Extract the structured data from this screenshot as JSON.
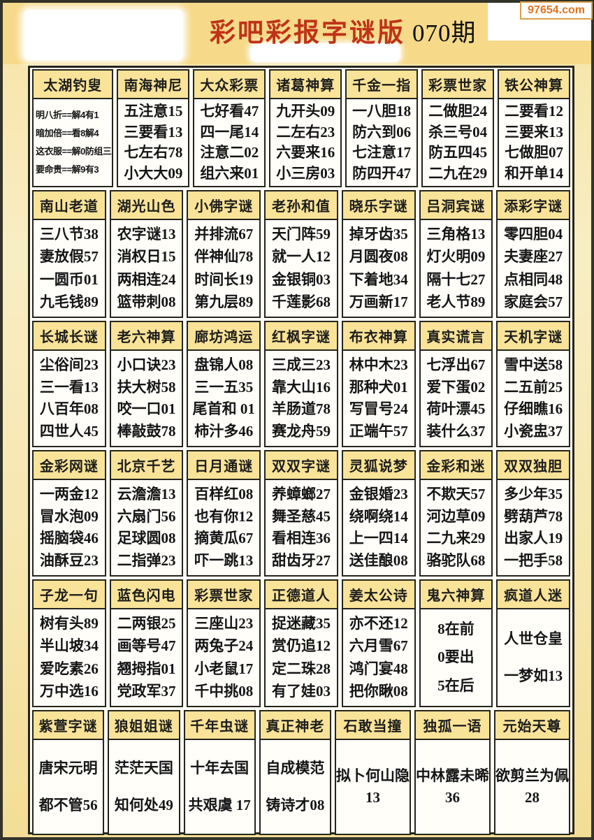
{
  "page": {
    "title_red": "彩吧彩报字谜版",
    "title_issue": "070期",
    "watermark": "97654.com"
  },
  "colors": {
    "title_red": "#bf3318",
    "header_yellow": "#f9e398",
    "band_yellow": "#f6da8a",
    "border_dark": "#25251d",
    "watermark_orange": "#e2731d"
  },
  "table": {
    "rows": [
      {
        "headers": [
          "太湖钓叟",
          "南海神尼",
          "大众彩票",
          "诸葛神算",
          "千金一指",
          "彩票世家",
          "铁公神算"
        ],
        "cells": [
          {
            "style": "left",
            "lines": [
              "明八折==解4有1",
              "暗加倍==看8解4",
              "这衣服==解0防组三",
              "要命贵==解9有3"
            ]
          },
          {
            "lines": [
              "五注意15",
              "三要看13",
              "七左右78",
              "小大大09"
            ]
          },
          {
            "lines": [
              "七好看47",
              "四一尾14",
              "注意二02",
              "组六来01"
            ]
          },
          {
            "lines": [
              "九开头09",
              "二左右23",
              "六要来16",
              "小三房03"
            ]
          },
          {
            "lines": [
              "一八胆18",
              "防六到06",
              "七注意17",
              "防四开47"
            ]
          },
          {
            "lines": [
              "二做胆24",
              "杀三号04",
              "防五四45",
              "二九在29"
            ]
          },
          {
            "lines": [
              "二要看12",
              "三要来13",
              "七做胆07",
              "和开单14"
            ]
          }
        ]
      },
      {
        "headers": [
          "南山老道",
          "湖光山色",
          "小佛字谜",
          "老孙和值",
          "晓乐字谜",
          "吕洞宾谜",
          "添彩字谜"
        ],
        "cells": [
          {
            "lines": [
              "三八节38",
              "妻放假57",
              "一圆币01",
              "九毛钱89"
            ]
          },
          {
            "lines": [
              "农字谜13",
              "消权日15",
              "两相连24",
              "篮带刺08"
            ]
          },
          {
            "lines": [
              "并排流67",
              "伴神仙78",
              "时间长19",
              "第九层89"
            ]
          },
          {
            "lines": [
              "天门阵59",
              "就一人12",
              "金银铜03",
              "千莲影68"
            ]
          },
          {
            "lines": [
              "掉牙齿35",
              "月圆夜08",
              "下着地34",
              "万画新17"
            ]
          },
          {
            "lines": [
              "三角格13",
              "灯火明09",
              "隔十七27",
              "老人节89"
            ]
          },
          {
            "lines": [
              "零四胆04",
              "夫妻座27",
              "点相同48",
              "家庭会57"
            ]
          }
        ]
      },
      {
        "headers": [
          "长城长谜",
          "老六神算",
          "廊坊鸿运",
          "红枫字谜",
          "布衣神算",
          "真实谎言",
          "天机字谜"
        ],
        "cells": [
          {
            "lines": [
              "尘俗间23",
              "三一看13",
              "八百年08",
              "四世人45"
            ]
          },
          {
            "lines": [
              "小口诀23",
              "扶大树58",
              "咬一口01",
              "棒敲鼓78"
            ]
          },
          {
            "lines": [
              "盘锦人08",
              "三一五35",
              "尾首和 01",
              "柿汁多46"
            ]
          },
          {
            "lines": [
              "三成三23",
              "靠大山16",
              "羊肠道78",
              "赛龙舟59"
            ]
          },
          {
            "lines": [
              "林中木23",
              "那种犬01",
              "写冒号24",
              "正端午57"
            ]
          },
          {
            "lines": [
              "七浮出67",
              "爱下蛋02",
              "荷叶漂45",
              "装什么37"
            ]
          },
          {
            "lines": [
              "雪中送58",
              "二五前25",
              "仔细瞧16",
              "小瓷盅37"
            ]
          }
        ]
      },
      {
        "headers": [
          "金彩网谜",
          "北京千艺",
          "日月通谜",
          "双双字谜",
          "灵狐说梦",
          "金彩和迷",
          "双双独胆"
        ],
        "cells": [
          {
            "lines": [
              "一两金12",
              "冒水泡09",
              "摇脑袋46",
              "油酥豆23"
            ]
          },
          {
            "lines": [
              "云澹澹13",
              "六扇门56",
              "足球圆08",
              "二指弹23"
            ]
          },
          {
            "lines": [
              "百样红08",
              "也有你12",
              "摘黄瓜67",
              "吓一跳13"
            ]
          },
          {
            "lines": [
              "养蟑螂27",
              "舞圣慈45",
              "看相连36",
              "甜齿牙27"
            ]
          },
          {
            "lines": [
              "金银婚23",
              "绕啊绕14",
              "上一四14",
              "送佳酿08"
            ]
          },
          {
            "lines": [
              "不欺天57",
              "河边草09",
              "二九来29",
              "骆驼队68"
            ]
          },
          {
            "lines": [
              "多少年35",
              "劈葫芦78",
              "出家人19",
              "一把手58"
            ]
          }
        ]
      },
      {
        "headers": [
          "子龙一句",
          "蓝色闪电",
          "彩票世家",
          "正德道人",
          "姜太公诗",
          "鬼六神算",
          "疯道人迷"
        ],
        "cells": [
          {
            "lines": [
              "树有头89",
              "半山坡34",
              "爱吃素26",
              "万中选16"
            ]
          },
          {
            "lines": [
              "二两银25",
              "画等号47",
              "翘拇指01",
              "党政军37"
            ]
          },
          {
            "lines": [
              "三座山23",
              "两兔子24",
              "小老鼠17",
              "千中挑08"
            ]
          },
          {
            "lines": [
              "捉迷藏35",
              "赏仍追12",
              "定二珠28",
              "有了娃03"
            ]
          },
          {
            "lines": [
              "亦不还12",
              "六月雪67",
              "鸿门宴48",
              "把你瞅08"
            ]
          },
          {
            "lines": [
              "8在前",
              "0要出",
              "5在后"
            ]
          },
          {
            "lines": [
              "人世仓皇",
              "一梦如13"
            ]
          }
        ]
      },
      {
        "headers": [
          "紫萱字谜",
          "狼姐姐谜",
          "千年虫谜",
          "真正神老",
          "石敢当撞",
          "独孤一语",
          "元始天尊"
        ],
        "cells": [
          {
            "lines": [
              "唐宋元明",
              "都不管56"
            ]
          },
          {
            "lines": [
              "茫茫天国",
              "知何处49"
            ]
          },
          {
            "lines": [
              "十年去国",
              "共艰虞 17"
            ]
          },
          {
            "lines": [
              "自成模范",
              "铸诗才08"
            ]
          },
          {
            "style": "tight",
            "lines": [
              "拟卜何山隐",
              "13"
            ]
          },
          {
            "style": "tight",
            "lines": [
              "中林露未晞",
              "36"
            ]
          },
          {
            "style": "tight",
            "lines": [
              "欲剪兰为佩",
              "28"
            ]
          }
        ]
      }
    ]
  }
}
